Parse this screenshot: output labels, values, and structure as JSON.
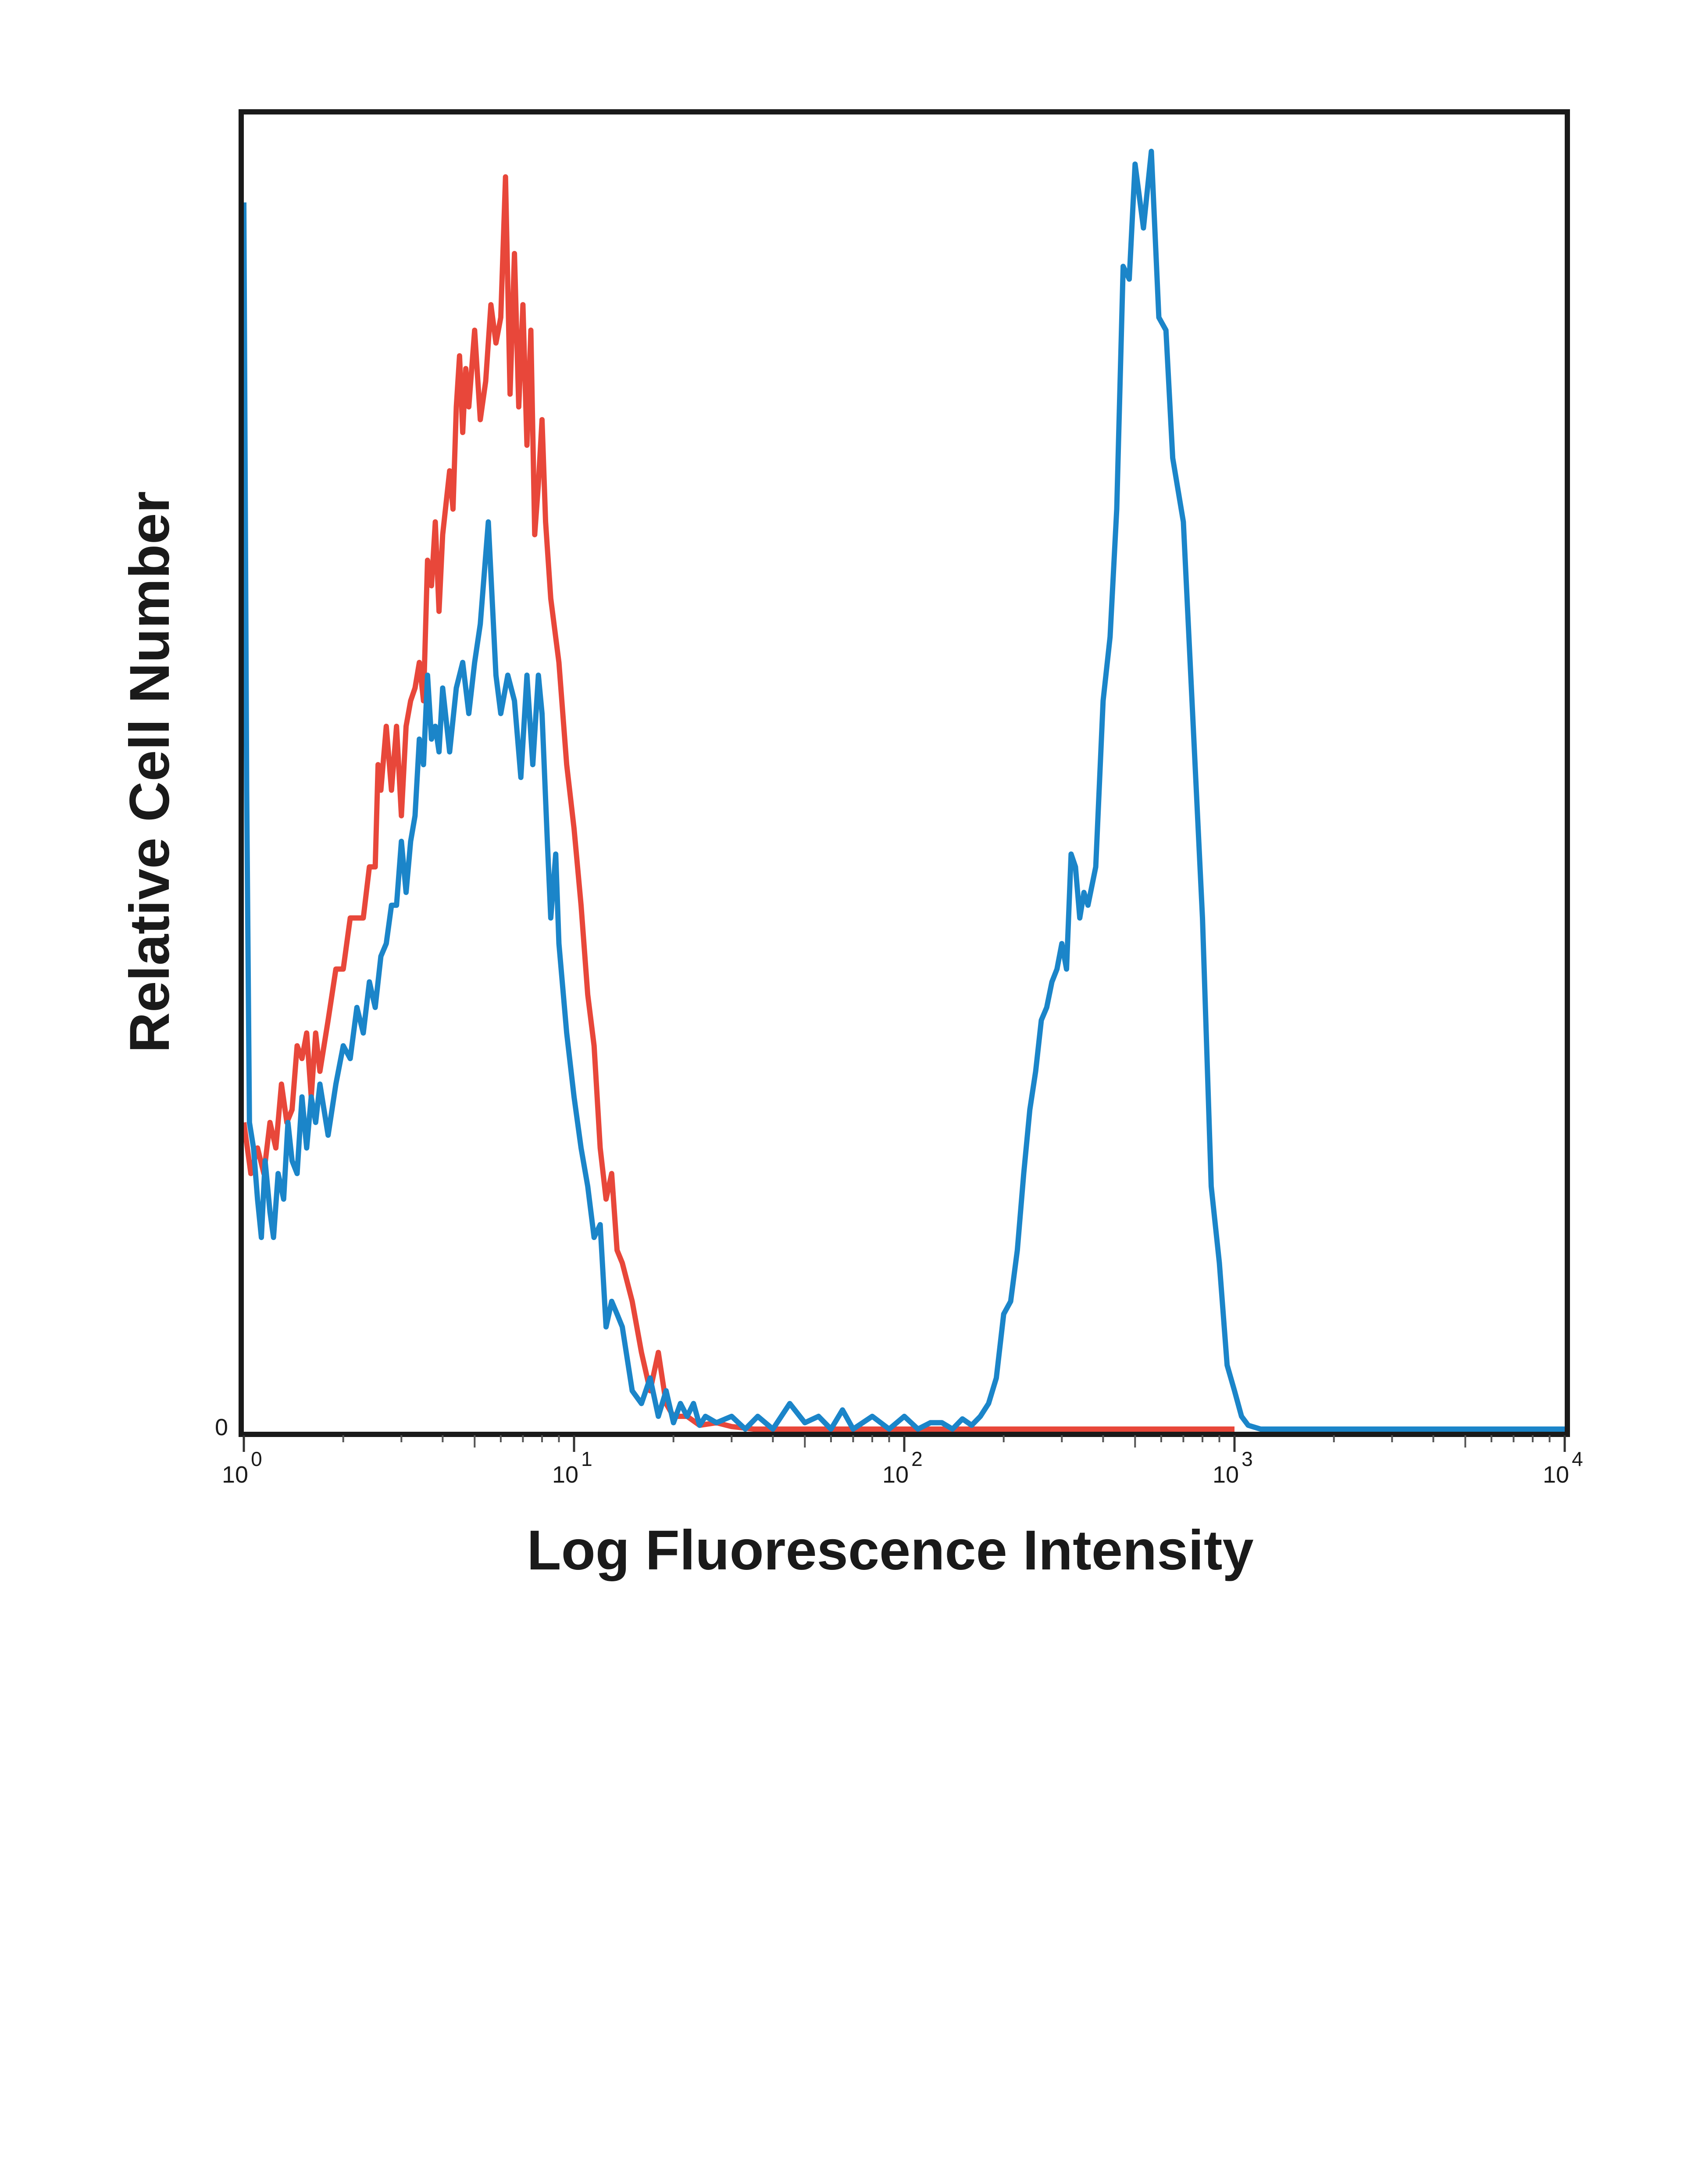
{
  "chart_data": {
    "type": "line",
    "title": "",
    "xlabel": "Log Fluorescence Intensity",
    "ylabel": "Relative Cell Number",
    "x_scale": "log",
    "xlim": [
      1,
      10000
    ],
    "ylim": [
      0,
      100
    ],
    "grid": false,
    "legend": "none",
    "x_ticks": [
      {
        "value": 1,
        "base": "10",
        "exp": "0"
      },
      {
        "value": 10,
        "base": "10",
        "exp": "1"
      },
      {
        "value": 100,
        "base": "10",
        "exp": "2"
      },
      {
        "value": 1000,
        "base": "10",
        "exp": "3"
      },
      {
        "value": 10000,
        "base": "10",
        "exp": "4"
      }
    ],
    "y_ticks": [
      {
        "value": 0,
        "label": "0"
      }
    ],
    "series": [
      {
        "color": "#e8473a",
        "points": [
          [
            1.0,
            24
          ],
          [
            1.05,
            20
          ],
          [
            1.1,
            22
          ],
          [
            1.15,
            20
          ],
          [
            1.2,
            24
          ],
          [
            1.25,
            22
          ],
          [
            1.3,
            27
          ],
          [
            1.35,
            24
          ],
          [
            1.4,
            25
          ],
          [
            1.45,
            30
          ],
          [
            1.5,
            29
          ],
          [
            1.55,
            31
          ],
          [
            1.6,
            26
          ],
          [
            1.65,
            31
          ],
          [
            1.7,
            28
          ],
          [
            1.8,
            32
          ],
          [
            1.9,
            36
          ],
          [
            2.0,
            36
          ],
          [
            2.1,
            40
          ],
          [
            2.2,
            40
          ],
          [
            2.3,
            40
          ],
          [
            2.4,
            44
          ],
          [
            2.5,
            44
          ],
          [
            2.55,
            52
          ],
          [
            2.6,
            50
          ],
          [
            2.7,
            55
          ],
          [
            2.8,
            50
          ],
          [
            2.9,
            55
          ],
          [
            3.0,
            48
          ],
          [
            3.1,
            55
          ],
          [
            3.2,
            57
          ],
          [
            3.3,
            58
          ],
          [
            3.4,
            60
          ],
          [
            3.5,
            57
          ],
          [
            3.6,
            68
          ],
          [
            3.7,
            66
          ],
          [
            3.8,
            71
          ],
          [
            3.9,
            64
          ],
          [
            4.0,
            70
          ],
          [
            4.2,
            75
          ],
          [
            4.3,
            72
          ],
          [
            4.4,
            80
          ],
          [
            4.5,
            84
          ],
          [
            4.6,
            78
          ],
          [
            4.7,
            83
          ],
          [
            4.8,
            80
          ],
          [
            5.0,
            86
          ],
          [
            5.2,
            79
          ],
          [
            5.4,
            82
          ],
          [
            5.6,
            88
          ],
          [
            5.8,
            85
          ],
          [
            6.0,
            87
          ],
          [
            6.2,
            98
          ],
          [
            6.4,
            81
          ],
          [
            6.6,
            92
          ],
          [
            6.8,
            80
          ],
          [
            7.0,
            88
          ],
          [
            7.2,
            77
          ],
          [
            7.4,
            86
          ],
          [
            7.6,
            70
          ],
          [
            7.8,
            74
          ],
          [
            8.0,
            79
          ],
          [
            8.2,
            71
          ],
          [
            8.5,
            65
          ],
          [
            9.0,
            60
          ],
          [
            9.5,
            52
          ],
          [
            10.0,
            47
          ],
          [
            10.5,
            41
          ],
          [
            11.0,
            34
          ],
          [
            11.5,
            30
          ],
          [
            12.0,
            22
          ],
          [
            12.5,
            18
          ],
          [
            13.0,
            20
          ],
          [
            13.5,
            14
          ],
          [
            14.0,
            13
          ],
          [
            15.0,
            10
          ],
          [
            16.0,
            6
          ],
          [
            17.0,
            3
          ],
          [
            18.0,
            6
          ],
          [
            19.0,
            2
          ],
          [
            20.0,
            1
          ],
          [
            22.0,
            1
          ],
          [
            24.0,
            0.3
          ],
          [
            27.0,
            0.5
          ],
          [
            30.0,
            0.2
          ],
          [
            35.0,
            0
          ],
          [
            100.0,
            0
          ],
          [
            1000.0,
            0
          ]
        ]
      },
      {
        "color": "#1b85c9",
        "points": [
          [
            1.0,
            96
          ],
          [
            1.02,
            50
          ],
          [
            1.04,
            24
          ],
          [
            1.07,
            22
          ],
          [
            1.1,
            18
          ],
          [
            1.13,
            15
          ],
          [
            1.16,
            21
          ],
          [
            1.2,
            17
          ],
          [
            1.23,
            15
          ],
          [
            1.27,
            20
          ],
          [
            1.32,
            18
          ],
          [
            1.36,
            24
          ],
          [
            1.4,
            21
          ],
          [
            1.45,
            20
          ],
          [
            1.5,
            26
          ],
          [
            1.55,
            22
          ],
          [
            1.6,
            26
          ],
          [
            1.65,
            24
          ],
          [
            1.7,
            27
          ],
          [
            1.8,
            23
          ],
          [
            1.9,
            27
          ],
          [
            2.0,
            30
          ],
          [
            2.1,
            29
          ],
          [
            2.2,
            33
          ],
          [
            2.3,
            31
          ],
          [
            2.4,
            35
          ],
          [
            2.5,
            33
          ],
          [
            2.6,
            37
          ],
          [
            2.7,
            38
          ],
          [
            2.8,
            41
          ],
          [
            2.9,
            41
          ],
          [
            3.0,
            46
          ],
          [
            3.1,
            42
          ],
          [
            3.2,
            46
          ],
          [
            3.3,
            48
          ],
          [
            3.4,
            54
          ],
          [
            3.5,
            52
          ],
          [
            3.6,
            59
          ],
          [
            3.7,
            54
          ],
          [
            3.8,
            55
          ],
          [
            3.9,
            53
          ],
          [
            4.0,
            58
          ],
          [
            4.2,
            53
          ],
          [
            4.4,
            58
          ],
          [
            4.6,
            60
          ],
          [
            4.8,
            56
          ],
          [
            5.0,
            60
          ],
          [
            5.2,
            63
          ],
          [
            5.5,
            71
          ],
          [
            5.8,
            59
          ],
          [
            6.0,
            56
          ],
          [
            6.3,
            59
          ],
          [
            6.6,
            57
          ],
          [
            6.9,
            51
          ],
          [
            7.2,
            59
          ],
          [
            7.5,
            52
          ],
          [
            7.8,
            59
          ],
          [
            8.0,
            56
          ],
          [
            8.3,
            46
          ],
          [
            8.5,
            40
          ],
          [
            8.8,
            45
          ],
          [
            9.0,
            38
          ],
          [
            9.5,
            31
          ],
          [
            10.0,
            26
          ],
          [
            10.5,
            22
          ],
          [
            11.0,
            19
          ],
          [
            11.5,
            15
          ],
          [
            12.0,
            16
          ],
          [
            12.5,
            8
          ],
          [
            13.0,
            10
          ],
          [
            13.5,
            9
          ],
          [
            14.0,
            8
          ],
          [
            15.0,
            3
          ],
          [
            16.0,
            2
          ],
          [
            17.0,
            4
          ],
          [
            18.0,
            1
          ],
          [
            19.0,
            3
          ],
          [
            20.0,
            0.5
          ],
          [
            21.0,
            2
          ],
          [
            22.0,
            1
          ],
          [
            23.0,
            2
          ],
          [
            24.0,
            0.3
          ],
          [
            25.0,
            1
          ],
          [
            27.0,
            0.5
          ],
          [
            30.0,
            1
          ],
          [
            33.0,
            0
          ],
          [
            36.0,
            1
          ],
          [
            40.0,
            0
          ],
          [
            45.0,
            2
          ],
          [
            50.0,
            0.5
          ],
          [
            55.0,
            1
          ],
          [
            60.0,
            0
          ],
          [
            65.0,
            1.5
          ],
          [
            70.0,
            0
          ],
          [
            80.0,
            1
          ],
          [
            90.0,
            0
          ],
          [
            100.0,
            1
          ],
          [
            110.0,
            0
          ],
          [
            120.0,
            0.5
          ],
          [
            130.0,
            0.5
          ],
          [
            140.0,
            0
          ],
          [
            150.0,
            0.8
          ],
          [
            160.0,
            0.3
          ],
          [
            170.0,
            1
          ],
          [
            180.0,
            2
          ],
          [
            190.0,
            4
          ],
          [
            200.0,
            9
          ],
          [
            210.0,
            10
          ],
          [
            220.0,
            14
          ],
          [
            230.0,
            20
          ],
          [
            240.0,
            25
          ],
          [
            250.0,
            28
          ],
          [
            260.0,
            32
          ],
          [
            270.0,
            33
          ],
          [
            280.0,
            35
          ],
          [
            290.0,
            36
          ],
          [
            300.0,
            38
          ],
          [
            310.0,
            36
          ],
          [
            320.0,
            45
          ],
          [
            330.0,
            44
          ],
          [
            340.0,
            40
          ],
          [
            350.0,
            42
          ],
          [
            360.0,
            41
          ],
          [
            380.0,
            44
          ],
          [
            400.0,
            57
          ],
          [
            420.0,
            62
          ],
          [
            440.0,
            72
          ],
          [
            460.0,
            91
          ],
          [
            480.0,
            90
          ],
          [
            500.0,
            99
          ],
          [
            530.0,
            94
          ],
          [
            560.0,
            100
          ],
          [
            590.0,
            87
          ],
          [
            620.0,
            86
          ],
          [
            650.0,
            76
          ],
          [
            700.0,
            71
          ],
          [
            750.0,
            55
          ],
          [
            800.0,
            40
          ],
          [
            850.0,
            19
          ],
          [
            900.0,
            13
          ],
          [
            950.0,
            5
          ],
          [
            1000.0,
            3
          ],
          [
            1050.0,
            1
          ],
          [
            1100.0,
            0.3
          ],
          [
            1200.0,
            0
          ],
          [
            3000.0,
            0
          ],
          [
            10000.0,
            0
          ]
        ]
      }
    ]
  }
}
